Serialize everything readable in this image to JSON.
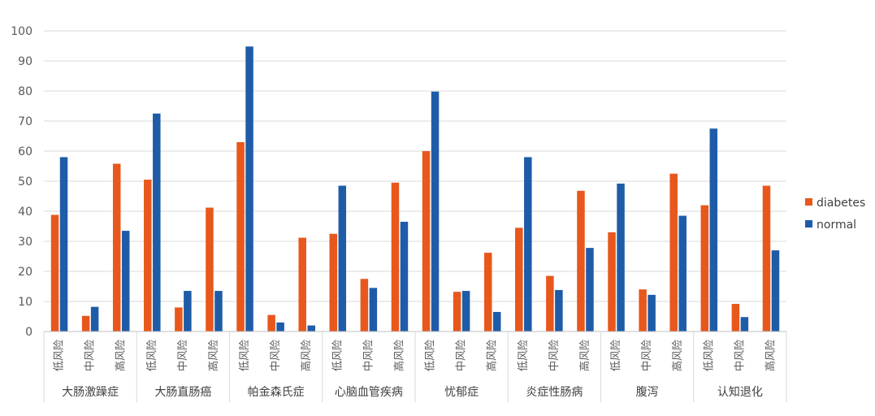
{
  "chart_data": {
    "type": "bar",
    "ylim": [
      0,
      100
    ],
    "yticks": [
      "0",
      "10",
      "20",
      "30",
      "40",
      "50",
      "60",
      "70",
      "80",
      "90",
      "100"
    ],
    "grid": true,
    "legend_position": "right",
    "subcategories": [
      "低风险",
      "中风险",
      "高风险"
    ],
    "groups": [
      "大肠激躁症",
      "大肠直肠癌",
      "帕金森氏症",
      "心脑血管疾病",
      "忧郁症",
      "炎症性肠病",
      "腹泻",
      "认知退化"
    ],
    "series": [
      {
        "name": "diabetes",
        "color": "#e8571c",
        "values": [
          38.8,
          5.2,
          55.8,
          50.5,
          8.0,
          41.2,
          63.0,
          5.5,
          31.2,
          32.5,
          17.5,
          49.5,
          60.0,
          13.2,
          26.2,
          34.5,
          18.5,
          46.8,
          33.0,
          14.0,
          52.5,
          42.0,
          9.2,
          48.5
        ]
      },
      {
        "name": "normal",
        "color": "#1f5ca8",
        "values": [
          58.0,
          8.2,
          33.5,
          72.5,
          13.5,
          13.5,
          94.8,
          3.0,
          2.0,
          48.5,
          14.5,
          36.5,
          79.8,
          13.5,
          6.5,
          58.0,
          13.8,
          27.8,
          49.2,
          12.2,
          38.5,
          67.5,
          4.8,
          27.0
        ]
      }
    ]
  }
}
